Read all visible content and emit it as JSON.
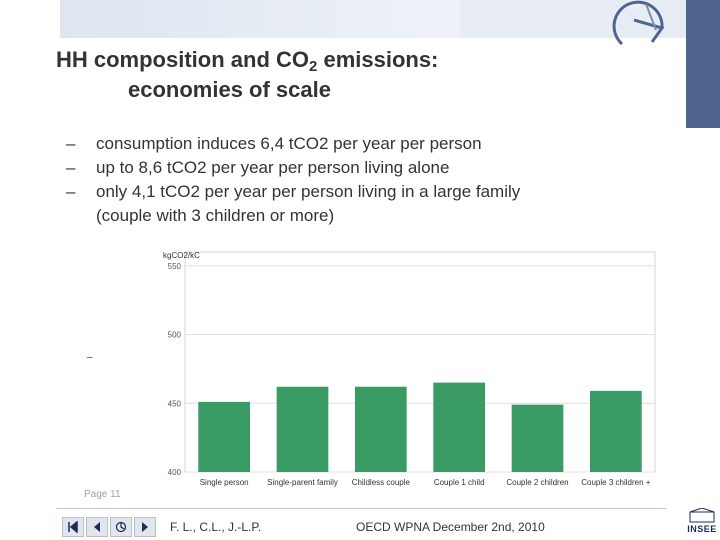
{
  "title": {
    "line1_pre": "HH composition and CO",
    "line1_sub": "2",
    "line1_post": " emissions:",
    "line2": "economies of scale"
  },
  "bullets": [
    {
      "dash": "–",
      "text": "consumption induces 6,4 tCO2 per year per person"
    },
    {
      "dash": "–",
      "text": "up to 8,6 tCO2 per year per person living alone"
    },
    {
      "dash": "–",
      "text": "only 4,1 tCO2 per year per person living in a large family",
      "continuation": "(couple with 3 children or more)"
    }
  ],
  "chart_data": {
    "type": "bar",
    "unit_label": "kgCO2/kC",
    "categories": [
      "Single person",
      "Single-parent family",
      "Childless couple",
      "Couple 1 child",
      "Couple 2 children",
      "Couple 3 children +"
    ],
    "values": [
      451,
      462,
      462,
      465,
      449,
      459
    ],
    "ylim": [
      400,
      560
    ],
    "yticks": [
      400,
      450,
      500,
      550
    ],
    "ytick_labels": [
      "400",
      "450",
      "500",
      "550"
    ],
    "bar_color": "#3a9a64",
    "grid": true
  },
  "stray_dash": "–",
  "page_label": "Page 11",
  "footer": {
    "authors": "F. L., C.L., J.-L.P.",
    "event": "OECD WPNA December 2nd, 2010"
  },
  "logo_text": "INSEE",
  "nav_icons": [
    "first-icon",
    "prev-icon",
    "home-icon",
    "next-icon"
  ],
  "colors": {
    "accent": "#4f6590",
    "band": "#e8edf5"
  }
}
